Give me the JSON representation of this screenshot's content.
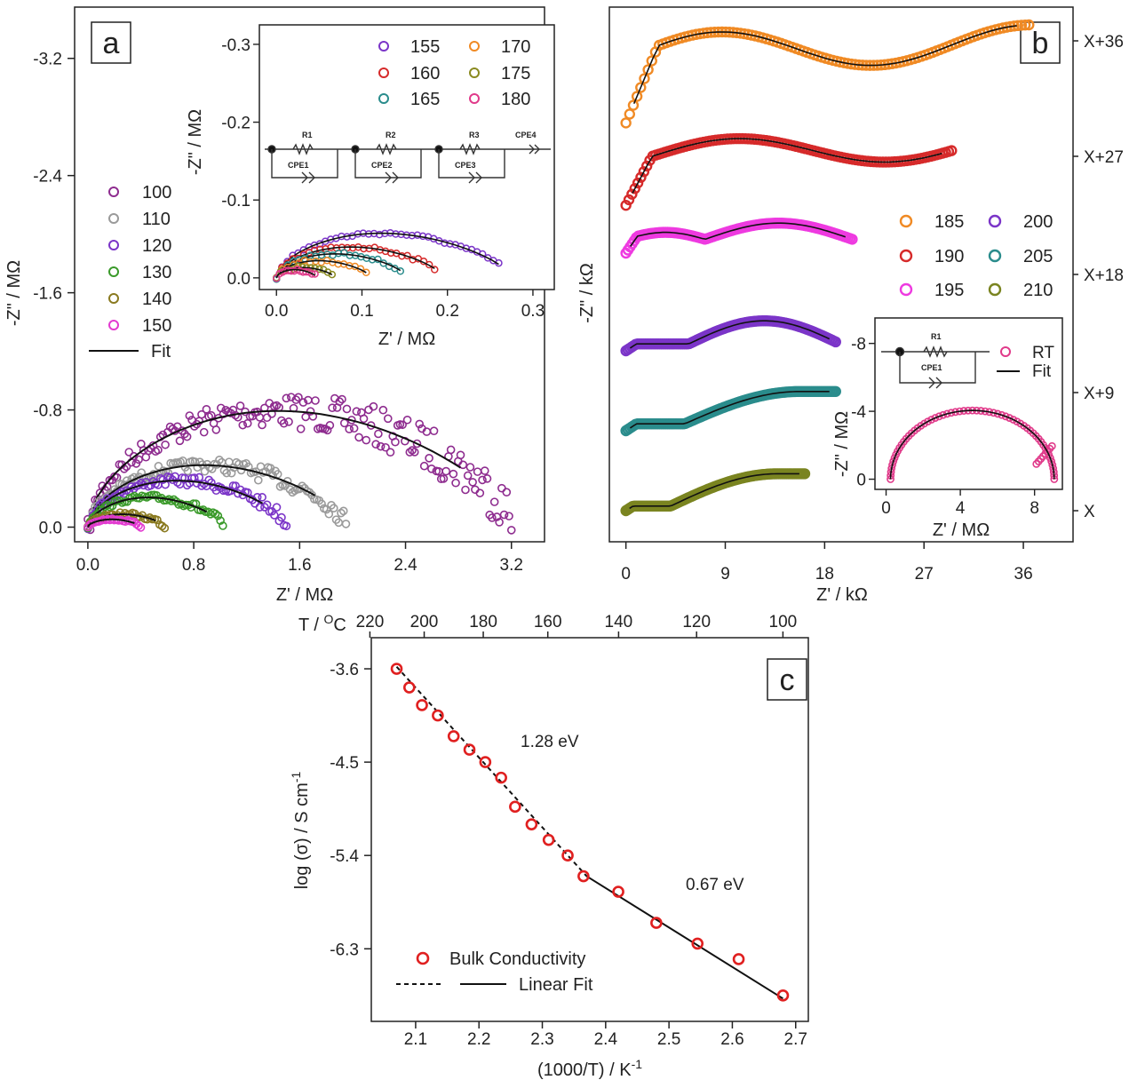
{
  "chart_data": [
    {
      "panel": "a",
      "type": "scatter",
      "xlabel": "Z' / MΩ",
      "ylabel": "-Z\" / MΩ",
      "xlim": [
        -0.1,
        3.45
      ],
      "ylim": [
        0.1,
        -3.55
      ],
      "xticks": [
        "0.0",
        "0.8",
        "1.6",
        "2.4",
        "3.2"
      ],
      "yticks": [
        "0.0",
        "-0.8",
        "-1.6",
        "-2.4",
        "-3.2"
      ],
      "series": [
        {
          "name": "100",
          "color": "#8e2c8f",
          "xmax": 3.2,
          "peak": -0.9,
          "noise": 0.18
        },
        {
          "name": "110",
          "color": "#9a9a9a",
          "xmax": 1.95,
          "peak": -0.48,
          "noise": 0.07
        },
        {
          "name": "120",
          "color": "#7b35c8",
          "xmax": 1.5,
          "peak": -0.36,
          "noise": 0.05
        },
        {
          "name": "130",
          "color": "#3a9a2a",
          "xmax": 1.02,
          "peak": -0.23,
          "noise": 0.03
        },
        {
          "name": "140",
          "color": "#8a7a20",
          "xmax": 0.58,
          "peak": -0.1,
          "noise": 0.02
        },
        {
          "name": "150",
          "color": "#e23bd0",
          "xmax": 0.4,
          "peak": -0.06,
          "noise": 0.01
        }
      ],
      "fit_label": "Fit",
      "inset": {
        "type": "scatter",
        "xlabel": "Z' / MΩ",
        "ylabel": "-Z\" / MΩ",
        "xlim": [
          -0.02,
          0.325
        ],
        "ylim": [
          0.015,
          -0.325
        ],
        "xticks": [
          "0.0",
          "0.1",
          "0.2",
          "0.3"
        ],
        "yticks": [
          "0.0",
          "-0.1",
          "-0.2",
          "-0.3"
        ],
        "series": [
          {
            "name": "155",
            "color": "#7b35c8",
            "xmax": 0.26,
            "peak": -0.065
          },
          {
            "name": "160",
            "color": "#d62a2a",
            "xmax": 0.185,
            "peak": -0.045
          },
          {
            "name": "165",
            "color": "#2a8c8c",
            "xmax": 0.145,
            "peak": -0.035
          },
          {
            "name": "170",
            "color": "#f08a24",
            "xmax": 0.105,
            "peak": -0.025
          },
          {
            "name": "175",
            "color": "#8a8a20",
            "xmax": 0.065,
            "peak": -0.015
          },
          {
            "name": "180",
            "color": "#e03a8a",
            "xmax": 0.045,
            "peak": -0.012
          }
        ],
        "circuit": [
          "R1",
          "CPE1",
          "R2",
          "CPE2",
          "R3",
          "CPE3",
          "CPE4"
        ]
      },
      "panel_label": "a"
    },
    {
      "panel": "b",
      "type": "scatter",
      "xlabel": "Z' / kΩ",
      "ylabel": "-Z\" / kΩ",
      "xlim": [
        -1.5,
        40.5
      ],
      "xticks": [
        "0",
        "9",
        "18",
        "27",
        "36"
      ],
      "offset_labels": [
        "X+36",
        "X+27",
        "X+18",
        "X+9",
        "X"
      ],
      "series": [
        {
          "name": "185",
          "color": "#f08a24",
          "offset": 36,
          "xmax": 36.5
        },
        {
          "name": "190",
          "color": "#d62a2a",
          "offset": 27,
          "xmax": 29.5
        },
        {
          "name": "195",
          "color": "#ee3ae0",
          "offset": 18,
          "xmax": 20.5
        },
        {
          "name": "200",
          "color": "#7b35c8",
          "offset": 9,
          "xmax": 19
        },
        {
          "name": "205",
          "color": "#2a8c8c",
          "offset": 4.5,
          "xmax": 19
        },
        {
          "name": "210",
          "color": "#7a8420",
          "offset": 0,
          "xmax": 16.2
        }
      ],
      "inset": {
        "type": "scatter",
        "xlabel": "Z' / MΩ",
        "ylabel": "-Z\" / MΩ",
        "xlim": [
          -0.6,
          9.5
        ],
        "ylim": [
          0.6,
          -9.5
        ],
        "xticks": [
          "0",
          "4",
          "8"
        ],
        "yticks": [
          "0",
          "-4",
          "-8"
        ],
        "series": [
          {
            "name": "RT",
            "color": "#e03a8a",
            "R": 9.0
          }
        ],
        "fit_label": "Fit",
        "circuit": [
          "R1",
          "CPE1"
        ]
      },
      "panel_label": "b"
    },
    {
      "panel": "c",
      "type": "scatter",
      "xlabel": "(1000/T) / K",
      "xlabel_sup": "-1",
      "ylabel": "log (σ) / S cm",
      "ylabel_sup": "-1",
      "top_axis_label": "T / ",
      "top_axis_sup": "O",
      "top_axis_unit": "C",
      "xlim": [
        2.03,
        2.72
      ],
      "ylim": [
        -7.0,
        -3.3
      ],
      "xticks": [
        "2.1",
        "2.2",
        "2.3",
        "2.4",
        "2.5",
        "2.6",
        "2.7"
      ],
      "yticks": [
        "-3.6",
        "-4.5",
        "-5.4",
        "-6.3"
      ],
      "top_ticks": [
        "220",
        "200",
        "180",
        "160",
        "140",
        "120",
        "100"
      ],
      "x": [
        2.07,
        2.09,
        2.11,
        2.135,
        2.16,
        2.185,
        2.21,
        2.235,
        2.257,
        2.283,
        2.31,
        2.34,
        2.365,
        2.42,
        2.48,
        2.545,
        2.61,
        2.68
      ],
      "y": [
        -3.6,
        -3.78,
        -3.95,
        -4.05,
        -4.25,
        -4.38,
        -4.5,
        -4.65,
        -4.93,
        -5.1,
        -5.25,
        -5.4,
        -5.6,
        -5.75,
        -6.05,
        -6.25,
        -6.4,
        -6.75
      ],
      "fits": [
        {
          "style": "dashed",
          "x": [
            2.07,
            2.37
          ],
          "y": [
            -3.58,
            -5.6
          ]
        },
        {
          "style": "solid",
          "x": [
            2.37,
            2.68
          ],
          "y": [
            -5.6,
            -6.78
          ]
        }
      ],
      "annotations": [
        "1.28 eV",
        "0.67 eV"
      ],
      "legend": [
        "Bulk Conductivity",
        "Linear Fit"
      ],
      "marker_color": "#e02020",
      "panel_label": "c"
    }
  ]
}
